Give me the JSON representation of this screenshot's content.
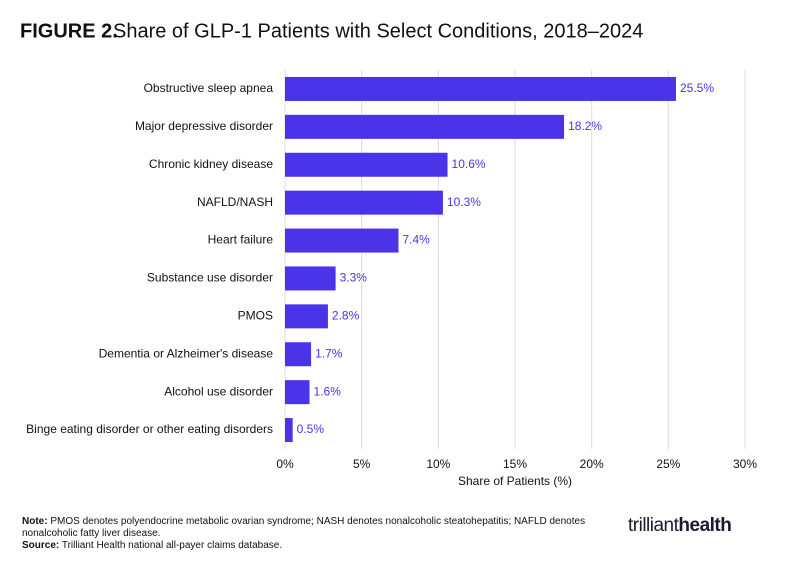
{
  "chart_data": {
    "type": "hbar",
    "title_label": "FIGURE 2.",
    "title": "Share of GLP-1 Patients with Select Conditions, 2018–2024",
    "categories": [
      "Obstructive sleep apnea",
      "Major depressive disorder",
      "Chronic kidney disease",
      "NAFLD/NASH",
      "Heart failure",
      "Substance use disorder",
      "PMOS",
      "Dementia or Alzheimer's disease",
      "Alcohol use disorder",
      "Binge eating disorder or other eating disorders"
    ],
    "values": [
      25.5,
      18.2,
      10.6,
      10.3,
      7.4,
      3.3,
      2.8,
      1.7,
      1.6,
      0.5
    ],
    "value_labels": [
      "25.5%",
      "18.2%",
      "10.6%",
      "10.3%",
      "7.4%",
      "3.3%",
      "2.8%",
      "1.7%",
      "1.6%",
      "0.5%"
    ],
    "color": "#4b33ea",
    "xlabel": "Share of Patients (%)",
    "xlim": [
      0,
      30
    ],
    "xticks": [
      {
        "value": 0,
        "label": "0%"
      },
      {
        "value": 5,
        "label": "5%"
      },
      {
        "value": 10,
        "label": "10%"
      },
      {
        "value": 15,
        "label": "15%"
      },
      {
        "value": 20,
        "label": "20%"
      },
      {
        "value": 25,
        "label": "25%"
      },
      {
        "value": 30,
        "label": "30%"
      }
    ],
    "grid": true
  },
  "footer": {
    "note_label": "Note:",
    "note": "PMOS denotes polyendocrine metabolic ovarian syndrome; NASH denotes nonalcoholic steatohepatitis; NAFLD denotes nonalcoholic fatty liver disease.",
    "source_label": "Source:",
    "source": "Trilliant Health national all-payer claims database.",
    "logo": [
      "trilliant",
      "health"
    ]
  }
}
